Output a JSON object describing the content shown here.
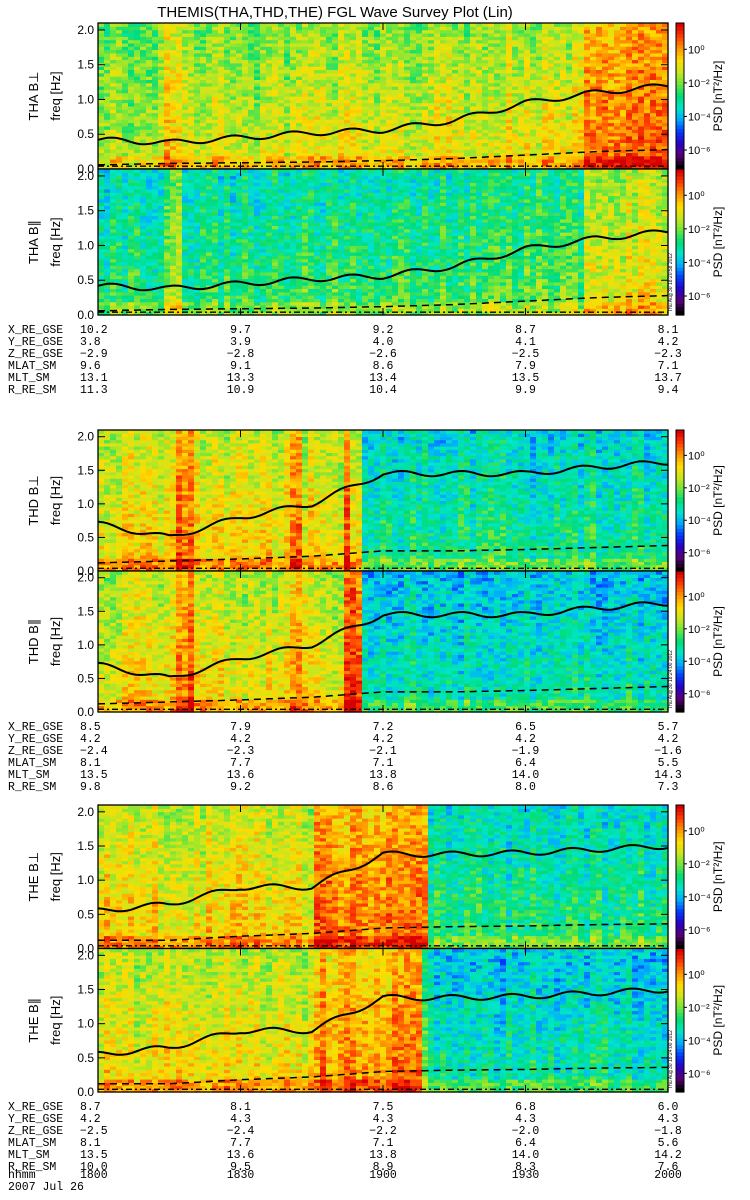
{
  "title": "THEMIS(THA,THD,THE) FGL Wave Survey Plot (Lin)",
  "colorbar": {
    "label": "PSD [nT²/Hz]",
    "ticks": [
      "10⁰",
      "10⁻²",
      "10⁻⁴",
      "10⁻⁶"
    ]
  },
  "freq_ticks": [
    "0.0",
    "0.5",
    "1.0",
    "1.5",
    "2.0"
  ],
  "stamps": [
    "Thu Aug 30 18:20:58 2012",
    "Thu Aug 30 18:24:00 2012",
    "Thu Aug 30 18:24:00 2012"
  ],
  "footer": {
    "date": "2007 Jul 26",
    "time_label": "hhmm",
    "time_ticks": [
      "1800",
      "1830",
      "1900",
      "1930",
      "2000"
    ]
  },
  "probes": [
    {
      "id": "THA",
      "panels": [
        {
          "ylabel": "THA B⊥ freq [Hz]"
        },
        {
          "ylabel": "THA B∥ freq [Hz]"
        }
      ],
      "ephemeris": [
        {
          "label": "X_RE_GSE",
          "values": [
            "10.2",
            "9.7",
            "9.2",
            "8.7",
            "8.1"
          ]
        },
        {
          "label": "Y_RE_GSE",
          "values": [
            "3.8",
            "3.9",
            "4.0",
            "4.1",
            "4.2"
          ]
        },
        {
          "label": "Z_RE_GSE",
          "values": [
            "−2.9",
            "−2.8",
            "−2.6",
            "−2.5",
            "−2.3"
          ]
        },
        {
          "label": "MLAT_SM",
          "values": [
            "9.6",
            "9.1",
            "8.6",
            "7.9",
            "7.1"
          ]
        },
        {
          "label": "MLT_SM",
          "values": [
            "13.1",
            "13.3",
            "13.4",
            "13.5",
            "13.7"
          ]
        },
        {
          "label": "R_RE_SM",
          "values": [
            "11.3",
            "10.9",
            "10.4",
            "9.9",
            "9.4"
          ]
        }
      ]
    },
    {
      "id": "THD",
      "panels": [
        {
          "ylabel": "THD B⊥ freq [Hz]"
        },
        {
          "ylabel": "THD B∥ freq [Hz]"
        }
      ],
      "ephemeris": [
        {
          "label": "X_RE_GSE",
          "values": [
            "8.5",
            "7.9",
            "7.2",
            "6.5",
            "5.7"
          ]
        },
        {
          "label": "Y_RE_GSE",
          "values": [
            "4.2",
            "4.2",
            "4.2",
            "4.2",
            "4.2"
          ]
        },
        {
          "label": "Z_RE_GSE",
          "values": [
            "−2.4",
            "−2.3",
            "−2.1",
            "−1.9",
            "−1.6"
          ]
        },
        {
          "label": "MLAT_SM",
          "values": [
            "8.1",
            "7.7",
            "7.1",
            "6.4",
            "5.5"
          ]
        },
        {
          "label": "MLT_SM",
          "values": [
            "13.5",
            "13.6",
            "13.8",
            "14.0",
            "14.3"
          ]
        },
        {
          "label": "R_RE_SM",
          "values": [
            "9.8",
            "9.2",
            "8.6",
            "8.0",
            "7.3"
          ]
        }
      ]
    },
    {
      "id": "THE",
      "panels": [
        {
          "ylabel": "THE B⊥ freq [Hz]"
        },
        {
          "ylabel": "THE B∥ freq [Hz]"
        }
      ],
      "ephemeris": [
        {
          "label": "X_RE_GSE",
          "values": [
            "8.7",
            "8.1",
            "7.5",
            "6.8",
            "6.0"
          ]
        },
        {
          "label": "Y_RE_GSE",
          "values": [
            "4.2",
            "4.3",
            "4.3",
            "4.3",
            "4.3"
          ]
        },
        {
          "label": "Z_RE_GSE",
          "values": [
            "−2.5",
            "−2.4",
            "−2.2",
            "−2.0",
            "−1.8"
          ]
        },
        {
          "label": "MLAT_SM",
          "values": [
            "8.1",
            "7.7",
            "7.1",
            "6.4",
            "5.6"
          ]
        },
        {
          "label": "MLT_SM",
          "values": [
            "13.5",
            "13.6",
            "13.8",
            "14.0",
            "14.2"
          ]
        },
        {
          "label": "R_RE_SM",
          "values": [
            "10.0",
            "9.5",
            "8.9",
            "8.3",
            "7.6"
          ]
        }
      ]
    }
  ],
  "chart_data": {
    "type": "heatmap",
    "title": "THEMIS(THA,THD,THE) FGL Wave Survey Plot (Lin)",
    "x_ticks": [
      "1800",
      "1830",
      "1900",
      "1930",
      "2000"
    ],
    "ylim": [
      0,
      2
    ],
    "colorbar_range": [
      "10⁻⁶",
      "10⁰"
    ],
    "curves": {
      "x_hhmm": [
        "1800",
        "1815",
        "1830",
        "1845",
        "1900",
        "1915",
        "1930",
        "1945",
        "2000"
      ],
      "THA_solid_Hz": [
        0.42,
        0.38,
        0.45,
        0.52,
        0.56,
        0.7,
        0.95,
        1.1,
        1.2
      ],
      "THA_dashed_Hz": [
        0.06,
        0.08,
        0.09,
        0.1,
        0.12,
        0.15,
        0.2,
        0.25,
        0.28
      ],
      "THD_solid_Hz": [
        0.7,
        0.5,
        0.8,
        1.0,
        1.45,
        1.45,
        1.45,
        1.55,
        1.62
      ],
      "THD_dashed_Hz": [
        0.12,
        0.15,
        0.18,
        0.22,
        0.3,
        0.3,
        0.32,
        0.35,
        0.38
      ],
      "THE_solid_Hz": [
        0.55,
        0.65,
        0.9,
        0.9,
        1.38,
        1.38,
        1.4,
        1.45,
        1.5
      ],
      "THE_dashed_Hz": [
        0.12,
        0.12,
        0.18,
        0.22,
        0.3,
        0.32,
        0.33,
        0.35,
        0.36
      ]
    }
  }
}
